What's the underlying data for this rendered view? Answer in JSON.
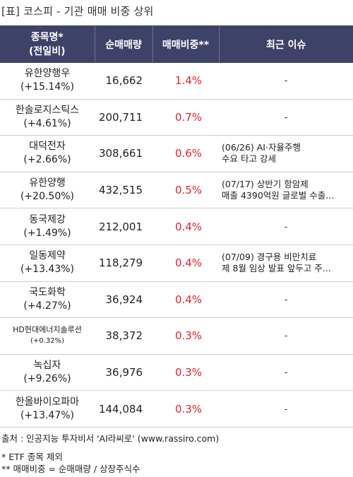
{
  "title": "[표] 코스피 - 기관 매매 비중 상위",
  "header": {
    "col1": "종목명*\n(전일비)",
    "col1_line1": "종목명*",
    "col1_line2": "(전일비)",
    "col2": "순매매량",
    "col3": "매매비중**",
    "col4": "최근 이슈"
  },
  "rows": [
    {
      "name": "유한양행우",
      "change": "(+15.14%)",
      "volume": "16,662",
      "ratio": "1.4%",
      "issue1": "-",
      "issue2": ""
    },
    {
      "name": "한솔로지스틱스",
      "change": "(+4.61%)",
      "volume": "200,711",
      "ratio": "0.7%",
      "issue1": "-",
      "issue2": ""
    },
    {
      "name": "대덕전자",
      "change": "(+2.66%)",
      "volume": "308,661",
      "ratio": "0.6%",
      "issue1": "(06/26) AI·자율주행",
      "issue2": "수요 타고 강세"
    },
    {
      "name": "유한양행",
      "change": "(+20.50%)",
      "volume": "432,515",
      "ratio": "0.5%",
      "issue1": "(07/17) 상반기 항암제",
      "issue2": "매출 4390억원 글로벌 수출..."
    },
    {
      "name": "동국제강",
      "change": "(+1.49%)",
      "volume": "212,001",
      "ratio": "0.4%",
      "issue1": "-",
      "issue2": ""
    },
    {
      "name": "일동제약",
      "change": "(+13.43%)",
      "volume": "118,279",
      "ratio": "0.4%",
      "issue1": "(07/09) 경구용 비만치료",
      "issue2": "제 8월 임상 발표 앞두고 주..."
    },
    {
      "name": "국도화학",
      "change": "(+4.27%)",
      "volume": "36,924",
      "ratio": "0.4%",
      "issue1": "-",
      "issue2": ""
    },
    {
      "name": "HD현대에너지솔루션",
      "change": "(+0.32%)",
      "volume": "38,372",
      "ratio": "0.3%",
      "issue1": "-",
      "issue2": "",
      "small": true
    },
    {
      "name": "녹십자",
      "change": "(+9.26%)",
      "volume": "36,976",
      "ratio": "0.3%",
      "issue1": "-",
      "issue2": ""
    },
    {
      "name": "한올바이오파마",
      "change": "(+13.47%)",
      "volume": "144,084",
      "ratio": "0.3%",
      "issue1": "-",
      "issue2": ""
    }
  ],
  "notes": {
    "source": "출처 : 인공지능 투자비서 'AI라씨로' (www.rassiro.com)",
    "note1": "* ETF 종목 제외",
    "note2": "** 매매비중 = 순매매량 / 상장주식수"
  }
}
